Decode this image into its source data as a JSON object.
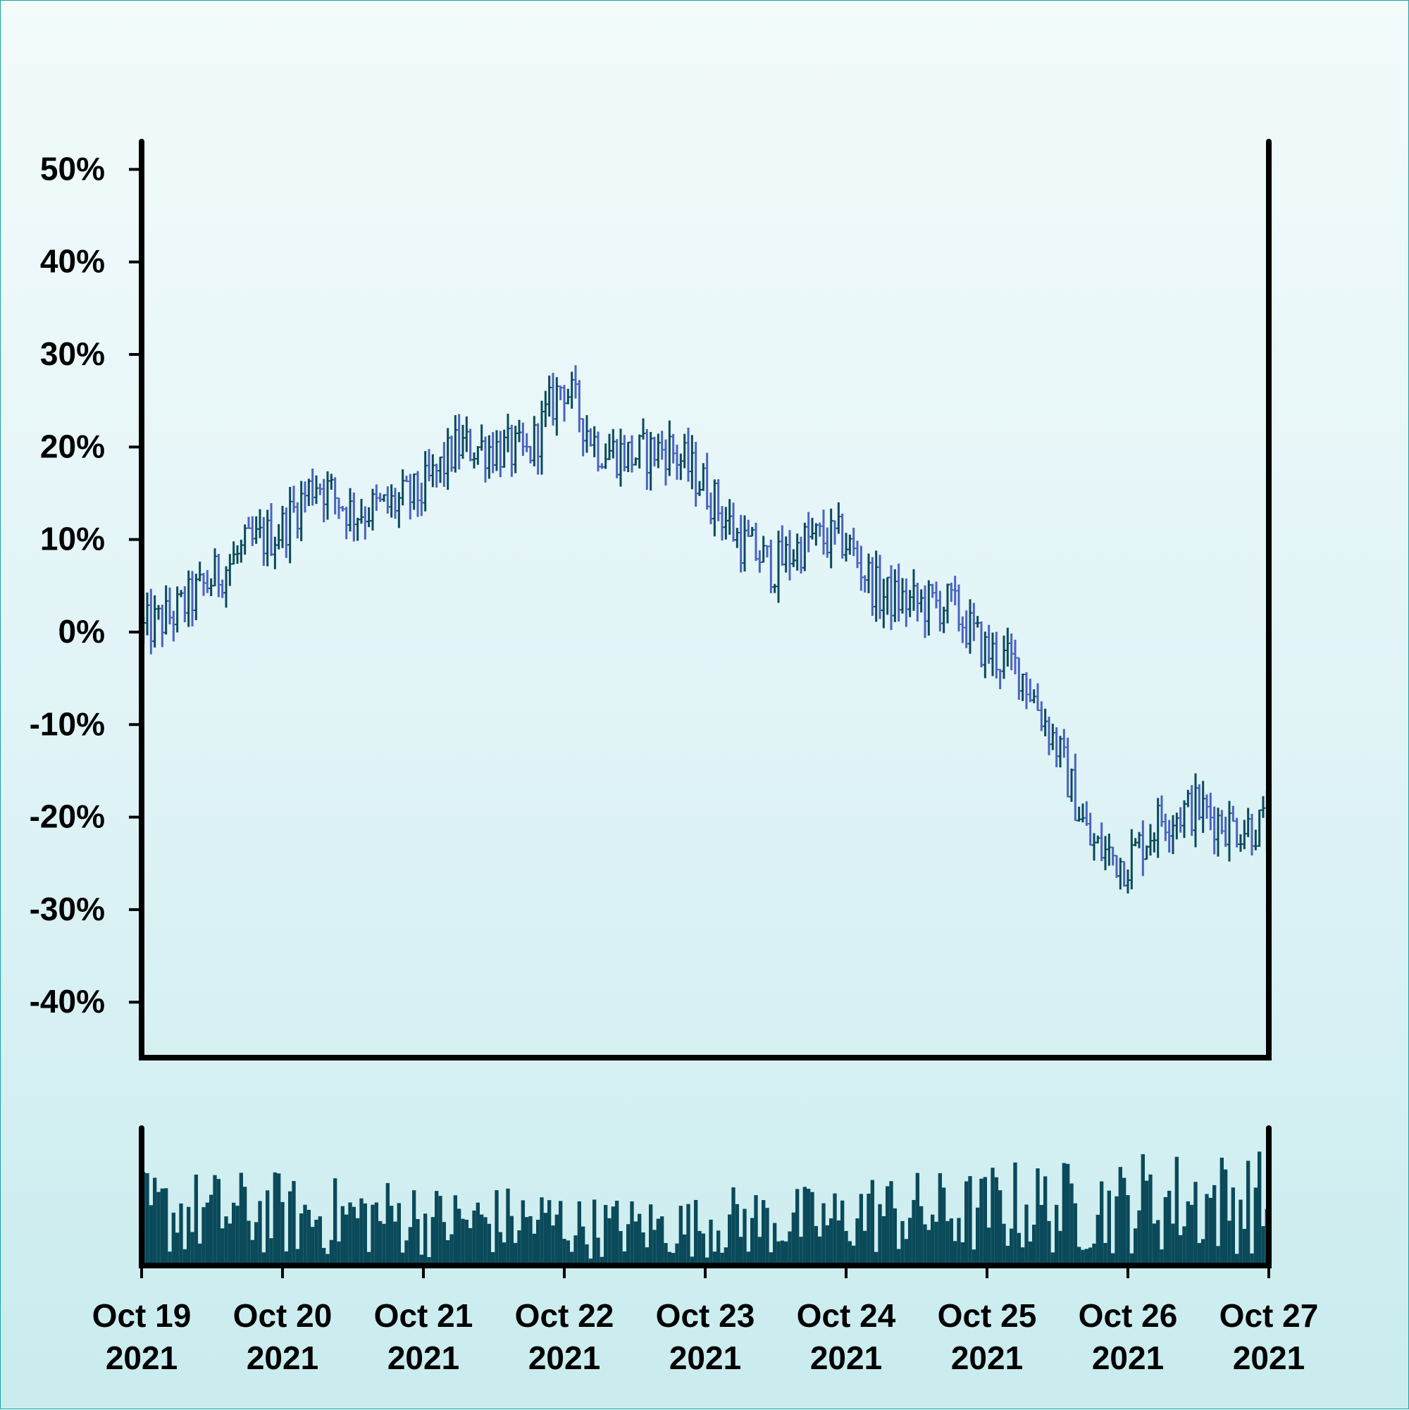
{
  "chart_data": {
    "type": "ohlc",
    "title": "",
    "xlabel": "",
    "ylabel": "",
    "y_unit": "percent",
    "ylim": [
      -0.46,
      0.53
    ],
    "y_ticks": [
      {
        "value": 0.5,
        "label": "50%"
      },
      {
        "value": 0.4,
        "label": "40%"
      },
      {
        "value": 0.3,
        "label": "30%"
      },
      {
        "value": 0.2,
        "label": "20%"
      },
      {
        "value": 0.1,
        "label": "10%"
      },
      {
        "value": 0.0,
        "label": "0%"
      },
      {
        "value": -0.1,
        "label": "-10%"
      },
      {
        "value": -0.2,
        "label": "-20%"
      },
      {
        "value": -0.3,
        "label": "-30%"
      },
      {
        "value": -0.4,
        "label": "-40%"
      }
    ],
    "x_range": [
      "2021-10-19",
      "2021-10-27"
    ],
    "x_ticks": [
      {
        "date": "2021-10-19",
        "line1": "Oct 19",
        "line2": "2021"
      },
      {
        "date": "2021-10-20",
        "line1": "Oct 20",
        "line2": "2021"
      },
      {
        "date": "2021-10-21",
        "line1": "Oct 21",
        "line2": "2021"
      },
      {
        "date": "2021-10-22",
        "line1": "Oct 22",
        "line2": "2021"
      },
      {
        "date": "2021-10-23",
        "line1": "Oct 23",
        "line2": "2021"
      },
      {
        "date": "2021-10-24",
        "line1": "Oct 24",
        "line2": "2021"
      },
      {
        "date": "2021-10-25",
        "line1": "Oct 25",
        "line2": "2021"
      },
      {
        "date": "2021-10-26",
        "line1": "Oct 26",
        "line2": "2021"
      },
      {
        "date": "2021-10-27",
        "line1": "Oct 27",
        "line2": "2021"
      }
    ],
    "grid": false,
    "legend": "none",
    "colors": {
      "up": "#0a4a5a",
      "down": "#4a63c0",
      "volume": "#0a4a5a",
      "axis": "#000000"
    },
    "anchor_closes": [
      {
        "date": "2021-10-19T00:00",
        "close": 0.0
      },
      {
        "date": "2021-10-19T06:00",
        "close": 0.02
      },
      {
        "date": "2021-10-19T12:00",
        "close": 0.055
      },
      {
        "date": "2021-10-19T18:00",
        "close": 0.09
      },
      {
        "date": "2021-10-20T00:00",
        "close": 0.11
      },
      {
        "date": "2021-10-20T06:00",
        "close": 0.165
      },
      {
        "date": "2021-10-20T12:00",
        "close": 0.13
      },
      {
        "date": "2021-10-20T18:00",
        "close": 0.135
      },
      {
        "date": "2021-10-21T00:00",
        "close": 0.15
      },
      {
        "date": "2021-10-21T06:00",
        "close": 0.2
      },
      {
        "date": "2021-10-21T12:00",
        "close": 0.2
      },
      {
        "date": "2021-10-21T18:00",
        "close": 0.19
      },
      {
        "date": "2021-10-22T00:00",
        "close": 0.27
      },
      {
        "date": "2021-10-22T06:00",
        "close": 0.2
      },
      {
        "date": "2021-10-22T12:00",
        "close": 0.19
      },
      {
        "date": "2021-10-22T18:00",
        "close": 0.2
      },
      {
        "date": "2021-10-23T00:00",
        "close": 0.16
      },
      {
        "date": "2021-10-23T06:00",
        "close": 0.1
      },
      {
        "date": "2021-10-23T12:00",
        "close": 0.07
      },
      {
        "date": "2021-10-23T18:00",
        "close": 0.1
      },
      {
        "date": "2021-10-24T00:00",
        "close": 0.1
      },
      {
        "date": "2021-10-24T06:00",
        "close": 0.04
      },
      {
        "date": "2021-10-24T12:00",
        "close": 0.03
      },
      {
        "date": "2021-10-24T18:00",
        "close": 0.03
      },
      {
        "date": "2021-10-25T00:00",
        "close": -0.02
      },
      {
        "date": "2021-10-25T06:00",
        "close": -0.04
      },
      {
        "date": "2021-10-25T12:00",
        "close": -0.12
      },
      {
        "date": "2021-10-25T18:00",
        "close": -0.23
      },
      {
        "date": "2021-10-26T00:00",
        "close": -0.25
      },
      {
        "date": "2021-10-26T06:00",
        "close": -0.2
      },
      {
        "date": "2021-10-26T12:00",
        "close": -0.19
      },
      {
        "date": "2021-10-26T18:00",
        "close": -0.21
      },
      {
        "date": "2021-10-27T00:00",
        "close": -0.21
      }
    ],
    "volume": {
      "shape": "bars",
      "relative_level_by_day": [
        0.45,
        0.42,
        0.38,
        0.33,
        0.38,
        0.45,
        0.5,
        0.55
      ],
      "max_relative_level": 0.95
    }
  }
}
